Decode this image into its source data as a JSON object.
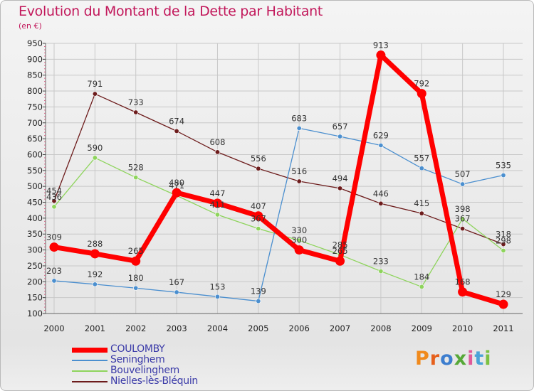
{
  "title": "Evolution du Montant de la Dette par Habitant",
  "unit": "(en €)",
  "logo_text": "Proxiti",
  "colors": {
    "COULOMBY": "#ff0000",
    "Seninghem": "#4b8fcf",
    "Bouvelinghem": "#8ed45c",
    "Nielles-lès-Bléquin": "#6d1c1c",
    "title": "#c2185b"
  },
  "chart_data": {
    "type": "line",
    "x": [
      "2000",
      "2001",
      "2002",
      "2003",
      "2004",
      "2005",
      "2006",
      "2007",
      "2008",
      "2009",
      "2010",
      "2011"
    ],
    "ylim": [
      100,
      950
    ],
    "yticks": [
      100,
      150,
      200,
      250,
      300,
      350,
      400,
      450,
      500,
      550,
      600,
      650,
      700,
      750,
      800,
      850,
      900,
      950
    ],
    "grid": true,
    "legend_position": "bottom-left",
    "series": [
      {
        "name": "Nielles-lès-Bléquin",
        "values": [
          454,
          791,
          733,
          674,
          608,
          556,
          516,
          494,
          446,
          415,
          367,
          318
        ]
      },
      {
        "name": "Bouvelinghem",
        "values": [
          436,
          590,
          528,
          471,
          411,
          367,
          330,
          285,
          233,
          184,
          398,
          298
        ]
      },
      {
        "name": "Seninghem",
        "values": [
          203,
          192,
          180,
          167,
          153,
          139,
          683,
          657,
          629,
          557,
          507,
          535
        ]
      },
      {
        "name": "COULOMBY",
        "values": [
          309,
          288,
          265,
          480,
          447,
          407,
          300,
          265,
          913,
          792,
          168,
          129
        ]
      }
    ]
  }
}
